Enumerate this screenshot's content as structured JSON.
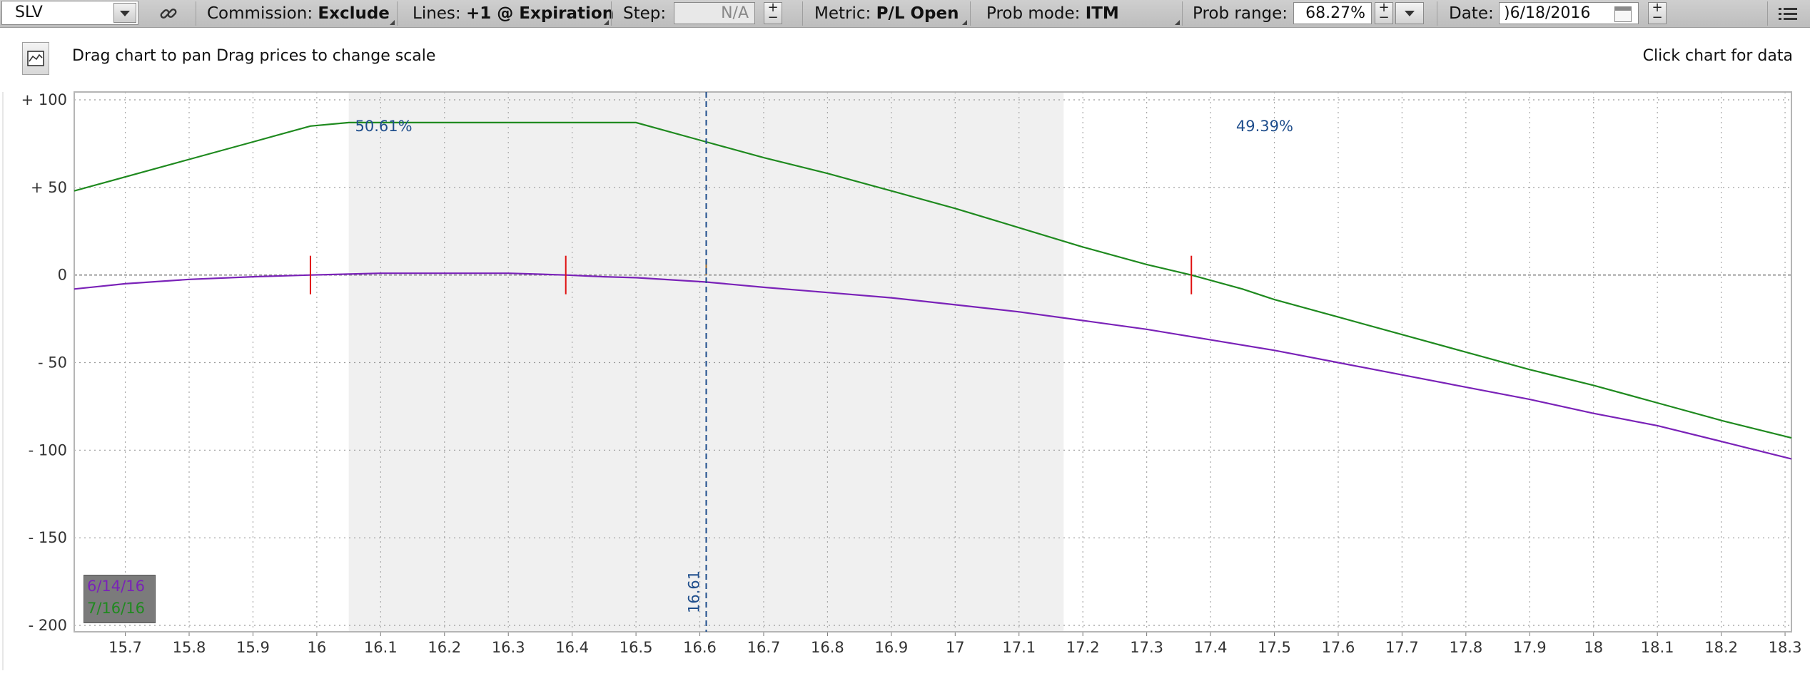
{
  "toolbar": {
    "symbol": "SLV",
    "commission_label": "Commission:",
    "commission_value": "Exclude",
    "lines_label": "Lines:",
    "lines_value": "+1 @ Expiration",
    "step_label": "Step:",
    "step_value": "N/A",
    "metric_label": "Metric:",
    "metric_value": "P/L Open",
    "probmode_label": "Prob mode:",
    "probmode_value": "ITM",
    "probrange_label": "Prob range:",
    "probrange_value": "68.27%",
    "date_label": "Date:",
    "date_value": ")6/18/2016",
    "plus": "+",
    "minus": "−"
  },
  "hint": "Drag chart to pan Drag prices to change scale",
  "click_hint": "Click chart for data",
  "colors": {
    "series_1": "#7a22b8",
    "series_2": "#1f8a1f",
    "marker": "#e01010",
    "price_line": "#1f4e8c",
    "shade": "#f0f0f0"
  },
  "chart_data": {
    "type": "line",
    "title": "",
    "xlabel": "",
    "ylabel": "",
    "xlim": [
      15.62,
      18.31
    ],
    "ylim": [
      -200,
      100
    ],
    "x_ticks": [
      "15.7",
      "15.8",
      "15.9",
      "16",
      "16.1",
      "16.2",
      "16.3",
      "16.4",
      "16.5",
      "16.6",
      "16.7",
      "16.8",
      "16.9",
      "17",
      "17.1",
      "17.2",
      "17.3",
      "17.4",
      "17.5",
      "17.6",
      "17.7",
      "17.8",
      "17.9",
      "18",
      "18.1",
      "18.2",
      "18.3"
    ],
    "y_ticks": [
      "+ 100",
      "+ 50",
      "0",
      "- 50",
      "- 100",
      "- 150",
      "- 200"
    ],
    "y_tick_values": [
      100,
      50,
      0,
      -50,
      -100,
      -150,
      -200
    ],
    "grid": true,
    "shaded_range": [
      16.05,
      17.17
    ],
    "probability_labels": [
      {
        "text": "50.61%",
        "x": 16.06,
        "y": 85
      },
      {
        "text": "49.39%",
        "x": 17.44,
        "y": 85
      }
    ],
    "current_price": {
      "x": 16.61,
      "label": "16.61"
    },
    "markers_series_1": [
      15.99,
      16.39
    ],
    "markers_series_2": [
      17.37
    ],
    "series": [
      {
        "name": "6/14/16",
        "x": [
          15.62,
          15.7,
          15.8,
          15.9,
          15.99,
          16.05,
          16.1,
          16.2,
          16.3,
          16.39,
          16.45,
          16.5,
          16.61,
          16.7,
          16.8,
          16.9,
          17.0,
          17.1,
          17.2,
          17.3,
          17.4,
          17.5,
          17.6,
          17.7,
          17.8,
          17.9,
          18.0,
          18.1,
          18.2,
          18.31
        ],
        "values": [
          -8,
          -5,
          -2.5,
          -1,
          0,
          0.5,
          1,
          1,
          1,
          0,
          -1,
          -1.5,
          -4,
          -7,
          -10,
          -13,
          -17,
          -21,
          -26,
          -31,
          -37,
          -43,
          -50,
          -57,
          -64,
          -71,
          -79,
          -86,
          -95,
          -105
        ]
      },
      {
        "name": "7/16/16",
        "x": [
          15.62,
          15.7,
          15.8,
          15.9,
          15.99,
          16.05,
          16.1,
          16.2,
          16.3,
          16.4,
          16.5,
          16.61,
          16.7,
          16.8,
          16.9,
          17.0,
          17.1,
          17.2,
          17.3,
          17.37,
          17.45,
          17.5,
          17.6,
          17.7,
          17.8,
          17.9,
          18.0,
          18.1,
          18.2,
          18.31
        ],
        "values": [
          48,
          56,
          66,
          76,
          85,
          87,
          87,
          87,
          87,
          87,
          87,
          76,
          67,
          58,
          48,
          38,
          27,
          16,
          6,
          0,
          -8,
          -14,
          -24,
          -34,
          -44,
          -54,
          -63,
          -73,
          -83,
          -93
        ]
      }
    ]
  }
}
